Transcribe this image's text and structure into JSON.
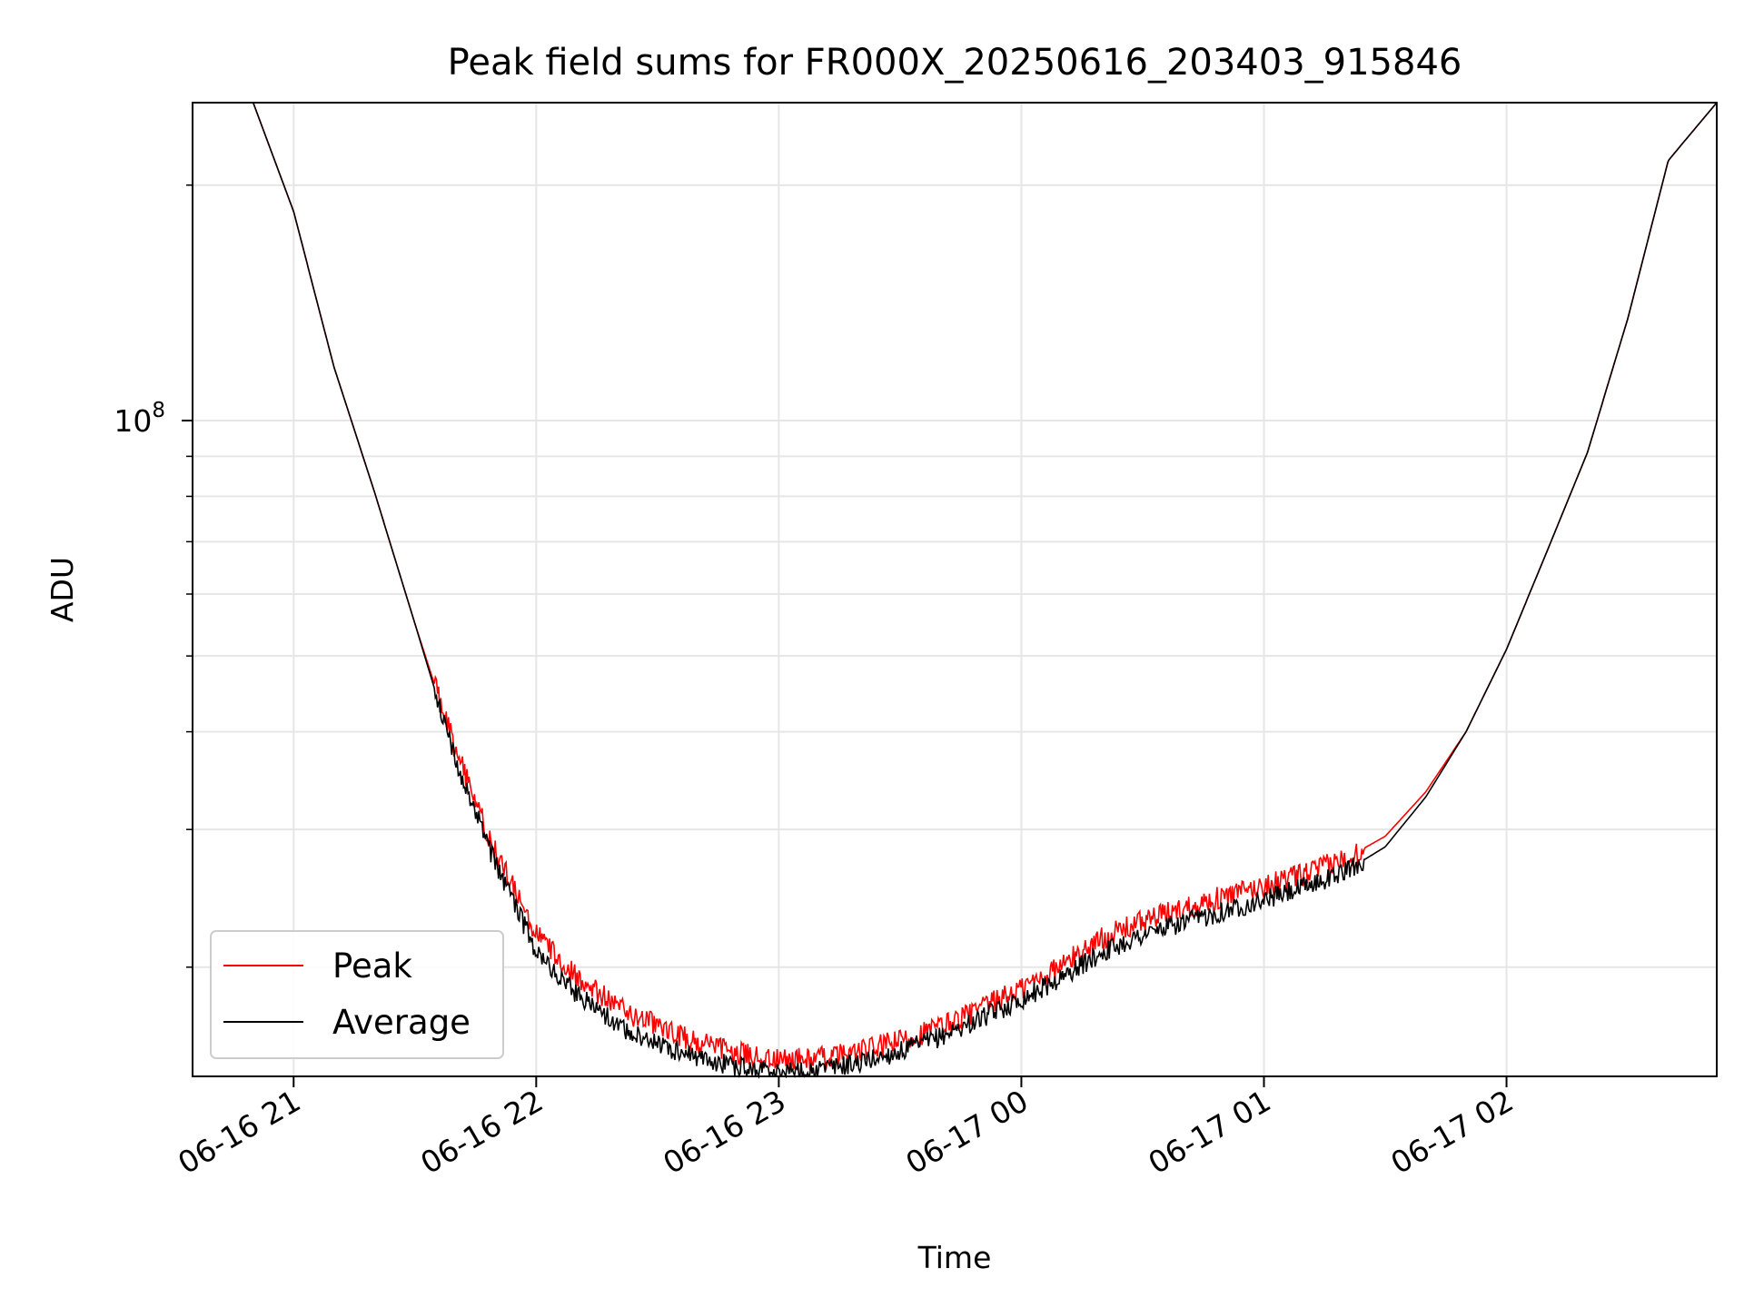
{
  "chart_data": {
    "type": "line",
    "title": "Peak field sums for FR000X_20250616_203403_915846",
    "xlabel": "Time",
    "ylabel": "ADU",
    "yscale": "log",
    "grid": true,
    "legend_position": "lower-left",
    "x_tick_labels": [
      "06-16 21",
      "06-16 22",
      "06-16 23",
      "06-17 00",
      "06-17 01",
      "06-17 02"
    ],
    "y_tick_labels": [
      {
        "base": "10",
        "exp": "8"
      }
    ],
    "xlim": [
      "2025-06-16 20:35",
      "2025-06-17 02:52"
    ],
    "ylim": [
      14500000,
      255000000
    ],
    "x": [
      "2025-06-16 20:35",
      "2025-06-16 20:50",
      "2025-06-16 21:00",
      "2025-06-16 21:10",
      "2025-06-16 21:20",
      "2025-06-16 21:30",
      "2025-06-16 21:40",
      "2025-06-16 21:50",
      "2025-06-16 22:00",
      "2025-06-16 22:10",
      "2025-06-16 22:20",
      "2025-06-16 22:30",
      "2025-06-16 22:40",
      "2025-06-16 22:50",
      "2025-06-16 23:00",
      "2025-06-16 23:10",
      "2025-06-16 23:20",
      "2025-06-16 23:30",
      "2025-06-16 23:40",
      "2025-06-16 23:50",
      "2025-06-17 00:00",
      "2025-06-17 00:10",
      "2025-06-17 00:20",
      "2025-06-17 00:30",
      "2025-06-17 00:40",
      "2025-06-17 00:50",
      "2025-06-17 01:00",
      "2025-06-17 01:10",
      "2025-06-17 01:20",
      "2025-06-17 01:30",
      "2025-06-17 01:40",
      "2025-06-17 01:50",
      "2025-06-17 02:00",
      "2025-06-17 02:10",
      "2025-06-17 02:20",
      "2025-06-17 02:30",
      "2025-06-17 02:40",
      "2025-06-17 02:52"
    ],
    "series": [
      {
        "name": "Peak",
        "color": "#ff0000",
        "values": [
          255000000,
          255000000,
          185000000,
          117000000,
          81000000,
          55000000,
          38000000,
          28000000,
          22000000,
          19500000,
          17800000,
          16800000,
          16000000,
          15500000,
          15200000,
          15300000,
          15600000,
          16100000,
          16800000,
          17700000,
          18800000,
          20100000,
          21800000,
          22900000,
          23800000,
          24600000,
          25400000,
          26300000,
          27500000,
          29400000,
          33500000,
          40000000,
          51000000,
          68000000,
          91000000,
          135000000,
          215000000,
          255000000
        ]
      },
      {
        "name": "Average",
        "color": "#000000",
        "values": [
          255000000,
          255000000,
          185000000,
          117000000,
          81000000,
          55000000,
          37000000,
          27000000,
          21000000,
          18500000,
          16900000,
          15900000,
          15300000,
          14900000,
          14700000,
          14800000,
          15100000,
          15600000,
          16300000,
          17200000,
          18200000,
          19400000,
          20900000,
          22000000,
          22800000,
          23600000,
          24400000,
          25300000,
          26500000,
          28500000,
          33000000,
          40000000,
          51000000,
          68000000,
          91000000,
          135000000,
          215000000,
          255000000
        ]
      }
    ]
  }
}
